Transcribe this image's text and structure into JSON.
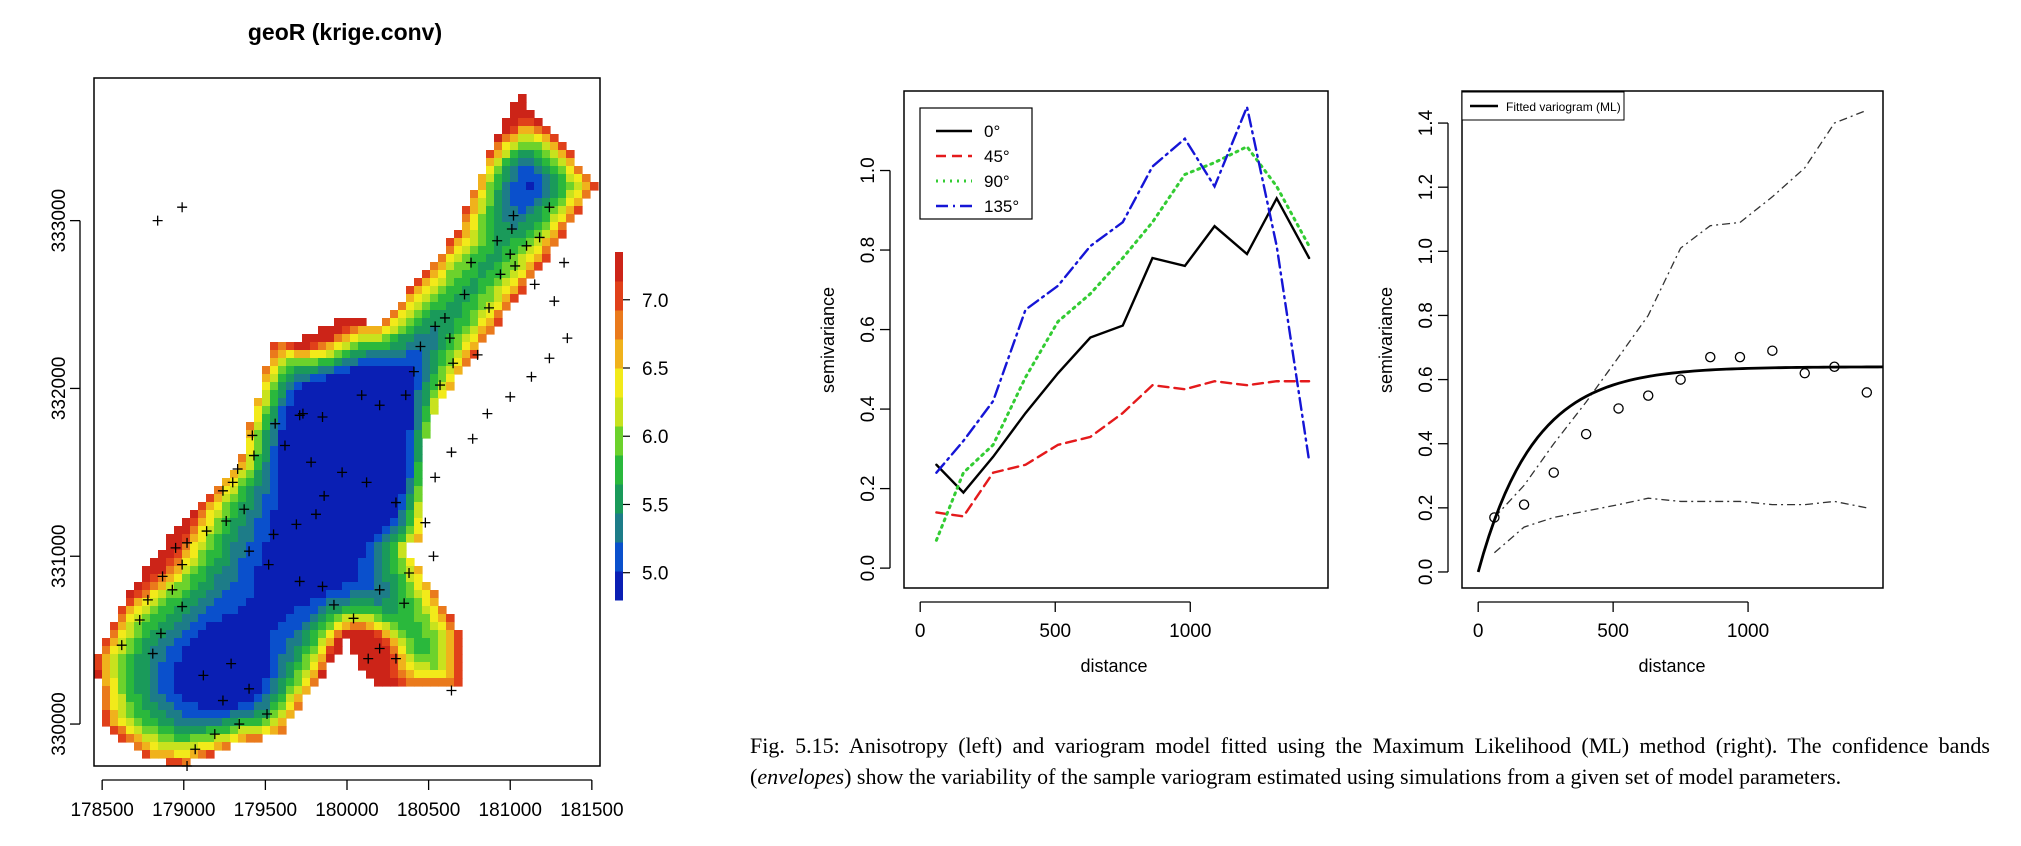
{
  "chart_data": [
    {
      "type": "heatmap",
      "title": "geoR (krige.conv)",
      "x_ticks": [
        "178500",
        "179000",
        "179500",
        "180000",
        "180500",
        "181000",
        "181500"
      ],
      "y_ticks": [
        "330000",
        "331000",
        "332000",
        "333000"
      ],
      "xlim": [
        178450,
        181550
      ],
      "ylim": [
        329750,
        333850
      ],
      "colorbar": {
        "ticks": [
          "5.0",
          "5.5",
          "6.0",
          "6.5",
          "7.0"
        ],
        "range": [
          4.8,
          7.35
        ],
        "colors": [
          "#0a1fb4",
          "#0a50cc",
          "#1d7c88",
          "#1a9a5a",
          "#2ab83c",
          "#6cd22c",
          "#c8e21e",
          "#f2ea1a",
          "#f0b21c",
          "#ea7a1c",
          "#e0401a",
          "#cc2418"
        ]
      },
      "samples": [
        [
          178990,
          333080
        ],
        [
          178840,
          333000
        ],
        [
          181020,
          333030
        ],
        [
          181240,
          333080
        ],
        [
          181010,
          332950
        ],
        [
          180920,
          332880
        ],
        [
          181100,
          332850
        ],
        [
          181000,
          332800
        ],
        [
          180760,
          332750
        ],
        [
          180940,
          332680
        ],
        [
          180720,
          332560
        ],
        [
          180870,
          332480
        ],
        [
          180600,
          332420
        ],
        [
          180540,
          332370
        ],
        [
          180630,
          332300
        ],
        [
          180450,
          332250
        ],
        [
          180800,
          332200
        ],
        [
          180650,
          332150
        ],
        [
          180410,
          332100
        ],
        [
          180570,
          332020
        ],
        [
          180360,
          331960
        ],
        [
          180200,
          331900
        ],
        [
          180090,
          331960
        ],
        [
          179850,
          331830
        ],
        [
          179710,
          331840
        ],
        [
          179560,
          331790
        ],
        [
          179420,
          331720
        ],
        [
          179430,
          331600
        ],
        [
          179330,
          331520
        ],
        [
          179300,
          331440
        ],
        [
          179240,
          331390
        ],
        [
          179370,
          331280
        ],
        [
          179260,
          331210
        ],
        [
          179140,
          331150
        ],
        [
          179020,
          331080
        ],
        [
          178950,
          331050
        ],
        [
          178990,
          330950
        ],
        [
          178870,
          330880
        ],
        [
          178930,
          330800
        ],
        [
          178780,
          330740
        ],
        [
          178990,
          330700
        ],
        [
          178730,
          330620
        ],
        [
          178860,
          330540
        ],
        [
          178620,
          330470
        ],
        [
          178810,
          330420
        ],
        [
          179290,
          330360
        ],
        [
          179120,
          330290
        ],
        [
          179400,
          330210
        ],
        [
          179240,
          330140
        ],
        [
          179510,
          330060
        ],
        [
          179340,
          330000
        ],
        [
          179190,
          329940
        ],
        [
          179070,
          329850
        ],
        [
          179020,
          329750
        ],
        [
          180200,
          330450
        ],
        [
          180300,
          330390
        ],
        [
          180130,
          330390
        ],
        [
          180640,
          330200
        ],
        [
          179730,
          331850
        ],
        [
          179620,
          331660
        ],
        [
          179780,
          331560
        ],
        [
          179970,
          331500
        ],
        [
          180120,
          331440
        ],
        [
          179860,
          331360
        ],
        [
          179810,
          331250
        ],
        [
          179690,
          331190
        ],
        [
          179550,
          331130
        ],
        [
          179400,
          331030
        ],
        [
          179520,
          330950
        ],
        [
          179710,
          330850
        ],
        [
          179850,
          330820
        ],
        [
          179920,
          330710
        ],
        [
          180040,
          330630
        ],
        [
          180200,
          330800
        ],
        [
          180350,
          330720
        ],
        [
          180380,
          330900
        ],
        [
          180530,
          331000
        ],
        [
          180480,
          331200
        ],
        [
          180300,
          331320
        ],
        [
          180540,
          331470
        ],
        [
          180640,
          331620
        ],
        [
          180770,
          331700
        ],
        [
          180860,
          331850
        ],
        [
          181000,
          331950
        ],
        [
          181130,
          332070
        ],
        [
          181240,
          332180
        ],
        [
          181350,
          332300
        ],
        [
          181270,
          332520
        ],
        [
          181150,
          332620
        ],
        [
          181030,
          332730
        ],
        [
          181330,
          332750
        ],
        [
          181180,
          332900
        ]
      ]
    },
    {
      "type": "line",
      "xlabel": "distance",
      "ylabel": "semivariance",
      "x_ticks": [
        "0",
        "500",
        "1000"
      ],
      "y_ticks": [
        "0.0",
        "0.2",
        "0.4",
        "0.6",
        "0.8",
        "1.0"
      ],
      "xlim": [
        -60,
        1510
      ],
      "ylim": [
        -0.05,
        1.2
      ],
      "legend": "top-left",
      "series": [
        {
          "name": "0°",
          "color": "#000000",
          "dash": "solid",
          "x": [
            60,
            160,
            270,
            390,
            510,
            630,
            750,
            860,
            980,
            1090,
            1210,
            1320,
            1440
          ],
          "y": [
            0.26,
            0.19,
            0.28,
            0.39,
            0.49,
            0.58,
            0.61,
            0.78,
            0.76,
            0.86,
            0.79,
            0.93,
            0.78
          ]
        },
        {
          "name": "45°",
          "color": "#e41a1c",
          "dash": "dashed",
          "x": [
            60,
            160,
            270,
            390,
            510,
            630,
            750,
            860,
            980,
            1090,
            1210,
            1320,
            1440
          ],
          "y": [
            0.14,
            0.13,
            0.24,
            0.26,
            0.31,
            0.33,
            0.39,
            0.46,
            0.45,
            0.47,
            0.46,
            0.47,
            0.47
          ]
        },
        {
          "name": "90°",
          "color": "#33cc33",
          "dash": "dotted",
          "x": [
            60,
            160,
            270,
            390,
            510,
            630,
            750,
            860,
            980,
            1090,
            1210,
            1320,
            1440
          ],
          "y": [
            0.07,
            0.24,
            0.31,
            0.48,
            0.62,
            0.69,
            0.78,
            0.87,
            0.99,
            1.02,
            1.06,
            0.96,
            0.81
          ]
        },
        {
          "name": "135°",
          "color": "#1515d6",
          "dash": "dashdot",
          "x": [
            60,
            160,
            270,
            390,
            510,
            630,
            750,
            860,
            980,
            1090,
            1210,
            1320,
            1440
          ],
          "y": [
            0.24,
            0.32,
            0.42,
            0.65,
            0.71,
            0.81,
            0.87,
            1.01,
            1.08,
            0.96,
            1.16,
            0.81,
            0.27
          ]
        }
      ]
    },
    {
      "type": "line",
      "xlabel": "distance",
      "ylabel": "semivariance",
      "x_ticks": [
        "0",
        "500",
        "1000"
      ],
      "y_ticks": [
        "0.0",
        "0.2",
        "0.4",
        "0.6",
        "0.8",
        "1.0",
        "1.2",
        "1.4"
      ],
      "xlim": [
        -60,
        1500
      ],
      "ylim": [
        -0.05,
        1.5
      ],
      "legend": "top-left",
      "legend_entry": "Fitted variogram (ML)",
      "fitted": {
        "nugget": 0.0,
        "partial_sill": 0.64,
        "range": 620
      },
      "points": {
        "x": [
          60,
          170,
          280,
          400,
          520,
          630,
          750,
          860,
          970,
          1090,
          1210,
          1320,
          1440
        ],
        "y": [
          0.17,
          0.21,
          0.31,
          0.43,
          0.51,
          0.55,
          0.6,
          0.67,
          0.67,
          0.69,
          0.62,
          0.64,
          0.56
        ]
      },
      "envelope_upper": {
        "x": [
          60,
          170,
          280,
          400,
          520,
          630,
          750,
          860,
          970,
          1090,
          1210,
          1320,
          1440
        ],
        "y": [
          0.17,
          0.27,
          0.4,
          0.53,
          0.67,
          0.8,
          1.01,
          1.08,
          1.09,
          1.17,
          1.26,
          1.4,
          1.44
        ]
      },
      "envelope_lower": {
        "x": [
          60,
          170,
          280,
          400,
          520,
          630,
          750,
          860,
          970,
          1090,
          1210,
          1320,
          1440
        ],
        "y": [
          0.06,
          0.14,
          0.17,
          0.19,
          0.21,
          0.23,
          0.22,
          0.22,
          0.22,
          0.21,
          0.21,
          0.22,
          0.2
        ]
      }
    }
  ],
  "caption": {
    "prefix": "Fig. 5.15: Anisotropy (left) and variogram model fitted using the Maximum Likelihood (ML) method (right). The confidence bands (",
    "emph": "envelopes",
    "suffix": ") show the variability of the sample variogram estimated using simulations from a given set of model parameters."
  }
}
